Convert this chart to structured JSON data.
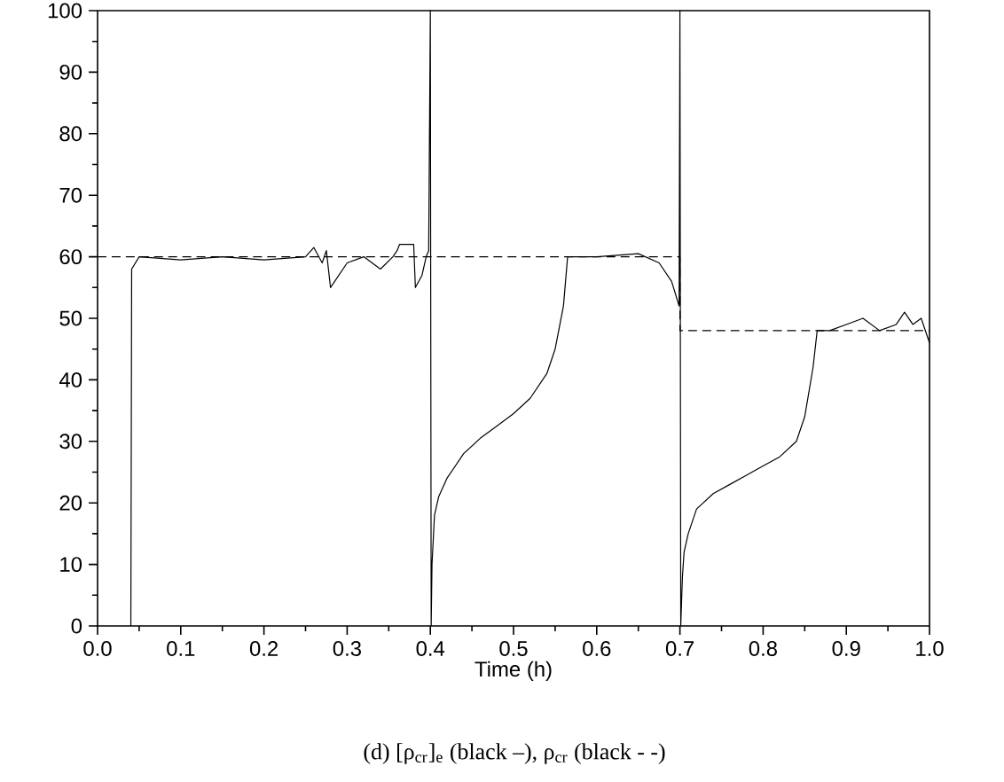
{
  "chart_data": {
    "type": "line",
    "xlabel": "Time (h)",
    "annotations": [
      "(d) [ρ$_{cr}$]$_{e}$ (black –), ρ$_{cr}$ (black - -)"
    ],
    "xlim": [
      0,
      1
    ],
    "ylim": [
      0,
      100
    ],
    "xticks": [
      {
        "value": 0,
        "label": "0.0"
      },
      {
        "value": 0.1,
        "label": "0.1"
      },
      {
        "value": 0.2,
        "label": "0.2"
      },
      {
        "value": 0.3,
        "label": "0.3"
      },
      {
        "value": 0.4,
        "label": "0.4"
      },
      {
        "value": 0.5,
        "label": "0.5"
      },
      {
        "value": 0.6,
        "label": "0.6"
      },
      {
        "value": 0.7,
        "label": "0.7"
      },
      {
        "value": 0.8,
        "label": "0.8"
      },
      {
        "value": 0.9,
        "label": "0.9"
      },
      {
        "value": 1,
        "label": "1.0"
      }
    ],
    "yticks": [
      0,
      10,
      20,
      30,
      40,
      50,
      60,
      70,
      80,
      90,
      100
    ],
    "grid": false,
    "marker": "none",
    "series": [
      {
        "color": "#000000",
        "line_style": "solid",
        "x": [
          0.04,
          0.041,
          0.05,
          0.1,
          0.15,
          0.2,
          0.25,
          0.26,
          0.27,
          0.275,
          0.28,
          0.3,
          0.32,
          0.34,
          0.355,
          0.36,
          0.363,
          0.38,
          0.382,
          0.39,
          0.395,
          0.398,
          0.4,
          0.401,
          0.402,
          0.405,
          0.41,
          0.42,
          0.44,
          0.46,
          0.48,
          0.5,
          0.52,
          0.54,
          0.55,
          0.56,
          0.565,
          0.6,
          0.65,
          0.675,
          0.69,
          0.699,
          0.7,
          0.701,
          0.703,
          0.705,
          0.71,
          0.72,
          0.74,
          0.76,
          0.78,
          0.8,
          0.82,
          0.84,
          0.85,
          0.86,
          0.865,
          0.88,
          0.9,
          0.92,
          0.94,
          0.96,
          0.97,
          0.98,
          0.99,
          1.0
        ],
        "values": [
          0,
          58,
          60,
          59.5,
          60,
          59.5,
          60,
          61.5,
          59,
          61,
          55,
          59,
          60,
          58,
          60,
          61,
          62,
          62,
          55,
          57,
          60,
          61,
          100,
          0,
          10,
          18,
          21,
          24,
          28,
          30.5,
          32.5,
          34.5,
          37,
          41,
          45,
          52,
          60,
          60,
          60.5,
          59,
          56,
          52,
          100,
          0,
          8,
          12,
          15,
          19,
          21.5,
          23,
          24.5,
          26,
          27.5,
          30,
          34,
          42,
          48,
          48,
          49,
          50,
          48,
          49,
          51,
          49,
          50,
          46
        ]
      },
      {
        "color": "#000000",
        "line_style": "dashed",
        "x": [
          0,
          0.7,
          0.7,
          1.0
        ],
        "values": [
          60,
          60,
          48,
          48
        ]
      }
    ]
  }
}
